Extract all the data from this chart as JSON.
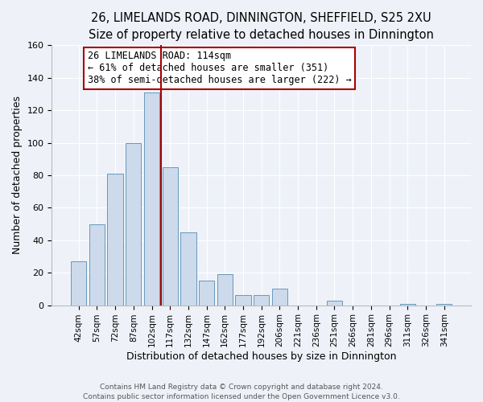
{
  "title": "26, LIMELANDS ROAD, DINNINGTON, SHEFFIELD, S25 2XU",
  "subtitle": "Size of property relative to detached houses in Dinnington",
  "xlabel": "Distribution of detached houses by size in Dinnington",
  "ylabel": "Number of detached properties",
  "bar_labels": [
    "42sqm",
    "57sqm",
    "72sqm",
    "87sqm",
    "102sqm",
    "117sqm",
    "132sqm",
    "147sqm",
    "162sqm",
    "177sqm",
    "192sqm",
    "206sqm",
    "221sqm",
    "236sqm",
    "251sqm",
    "266sqm",
    "281sqm",
    "296sqm",
    "311sqm",
    "326sqm",
    "341sqm"
  ],
  "bar_values": [
    27,
    50,
    81,
    100,
    131,
    85,
    45,
    15,
    19,
    6,
    6,
    10,
    0,
    0,
    3,
    0,
    0,
    0,
    1,
    0,
    1
  ],
  "bar_color": "#ccdaeb",
  "bar_edge_color": "#6699bb",
  "ylim": [
    0,
    160
  ],
  "yticks": [
    0,
    20,
    40,
    60,
    80,
    100,
    120,
    140,
    160
  ],
  "vline_color": "#aa0000",
  "annotation_title": "26 LIMELANDS ROAD: 114sqm",
  "annotation_line1": "← 61% of detached houses are smaller (351)",
  "annotation_line2": "38% of semi-detached houses are larger (222) →",
  "footer1": "Contains HM Land Registry data © Crown copyright and database right 2024.",
  "footer2": "Contains public sector information licensed under the Open Government Licence v3.0.",
  "background_color": "#eef2f8",
  "grid_color": "#ffffff",
  "title_fontsize": 10.5,
  "subtitle_fontsize": 9.5,
  "annotation_fontsize": 8.5,
  "vline_x_index": 4.5
}
